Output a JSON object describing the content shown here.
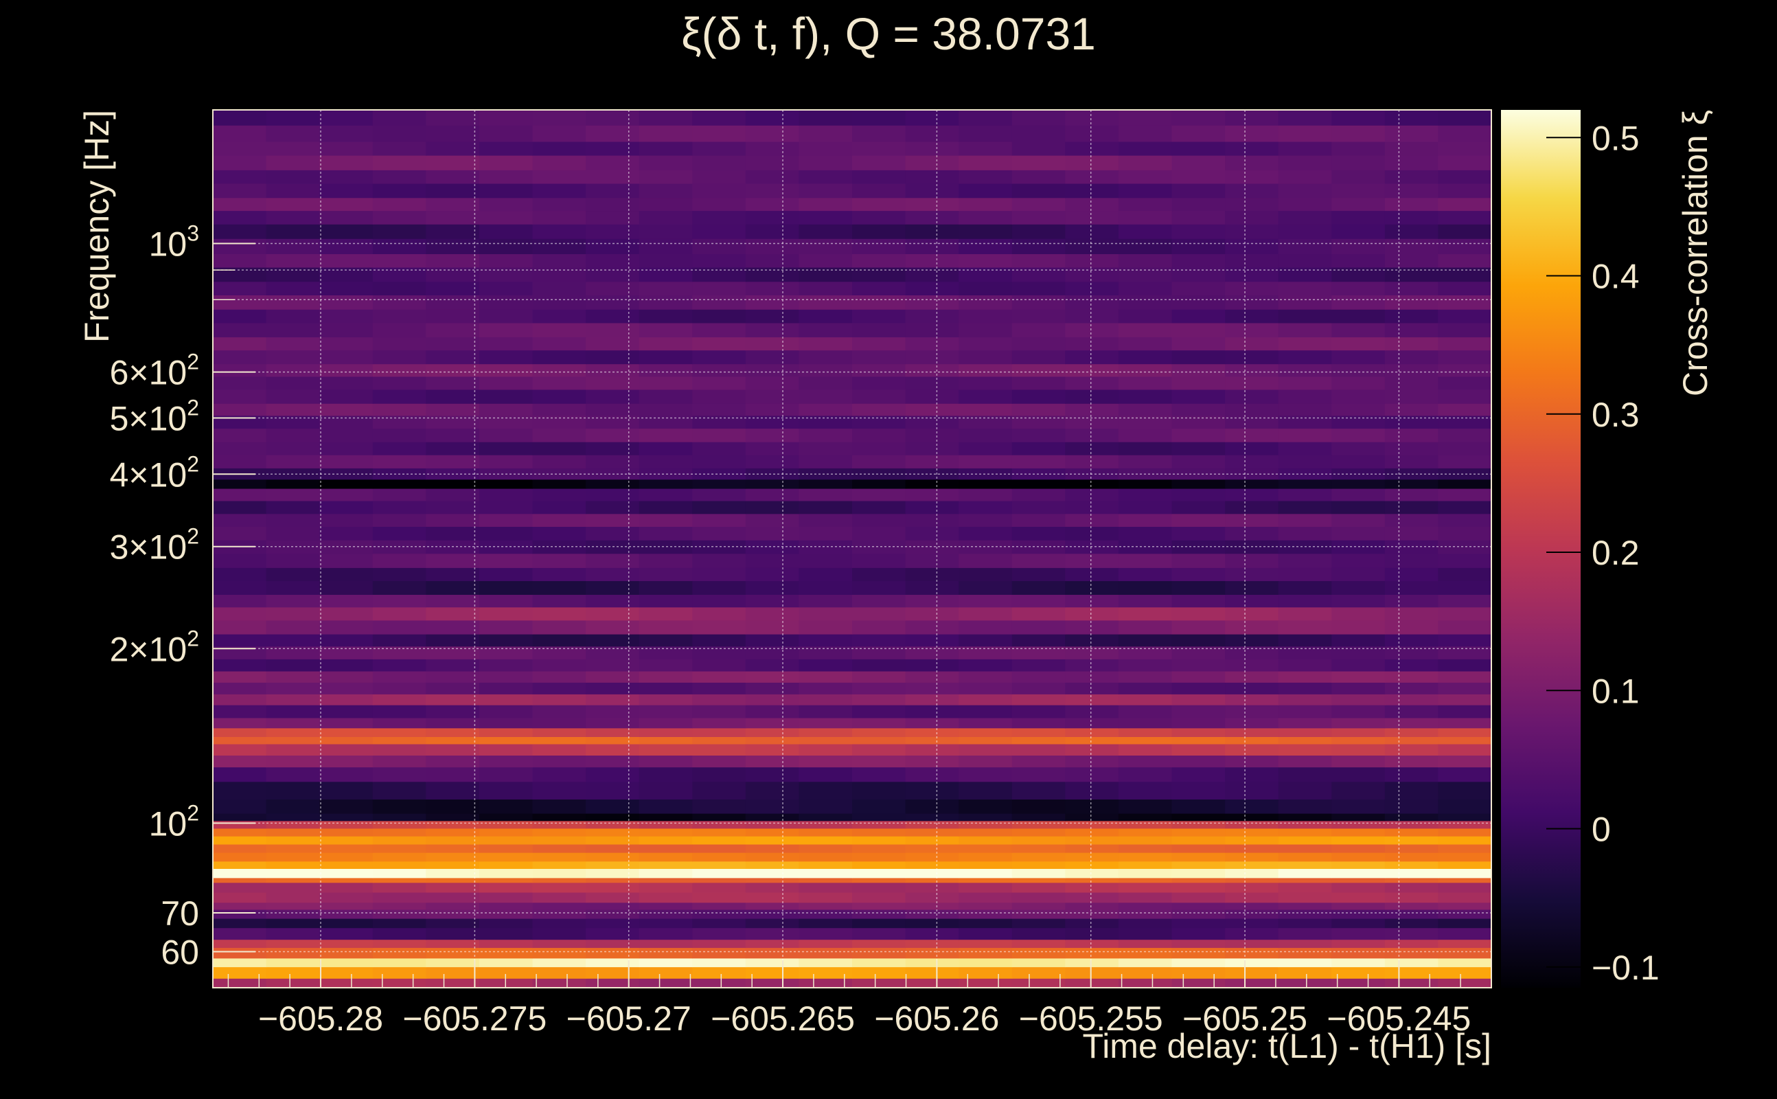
{
  "chart_data": {
    "type": "heatmap",
    "title": "ξ(δ t, f), Q = 38.0731",
    "xlabel": "Time delay: t(L1) - t(H1) [s]",
    "ylabel": "Frequency [Hz]",
    "colorbar_label": "Cross-correlation ξ",
    "xlim": [
      -605.2835,
      -605.242
    ],
    "ylim": [
      52,
      1700
    ],
    "y_scale": "log",
    "grid": true,
    "colormap": "inferno",
    "x_ticks": [
      -605.28,
      -605.275,
      -605.27,
      -605.265,
      -605.26,
      -605.255,
      -605.25,
      -605.245
    ],
    "x_tick_labels": [
      "−605.28",
      "−605.275",
      "−605.27",
      "−605.265",
      "−605.26",
      "−605.255",
      "−605.25",
      "−605.245"
    ],
    "y_ticks": [
      60,
      70,
      100,
      200,
      300,
      400,
      500,
      600,
      1000
    ],
    "y_tick_labels": [
      {
        "value": 60,
        "base": "60",
        "exp": ""
      },
      {
        "value": 70,
        "base": "70",
        "exp": ""
      },
      {
        "value": 100,
        "base": "10",
        "exp": "2"
      },
      {
        "value": 200,
        "base": "2×10",
        "exp": "2"
      },
      {
        "value": 300,
        "base": "3×10",
        "exp": "2"
      },
      {
        "value": 400,
        "base": "4×10",
        "exp": "2"
      },
      {
        "value": 500,
        "base": "5×10",
        "exp": "2"
      },
      {
        "value": 600,
        "base": "6×10",
        "exp": "2"
      },
      {
        "value": 1000,
        "base": "10",
        "exp": "3"
      }
    ],
    "y_grid_extra": [
      800,
      900
    ],
    "colorbar_range": [
      -0.115,
      0.52
    ],
    "colorbar_ticks": [
      -0.1,
      0,
      0.1,
      0.2,
      0.3,
      0.4,
      0.5
    ],
    "colorbar_tick_labels": [
      "−0.1",
      "0",
      "0.1",
      "0.2",
      "0.3",
      "0.4",
      "0.5"
    ],
    "freq_bands": [
      {
        "f": [
          52,
          54
        ],
        "v": 0.16
      },
      {
        "f": [
          54,
          56.5
        ],
        "v": 0.38
      },
      {
        "f": [
          56.5,
          58.5
        ],
        "v": 0.5
      },
      {
        "f": [
          58.5,
          61
        ],
        "v": 0.3
      },
      {
        "f": [
          61,
          63
        ],
        "v": 0.2
      },
      {
        "f": [
          63,
          66
        ],
        "v": 0.02
      },
      {
        "f": [
          66,
          68.5
        ],
        "v": -0.02
      },
      {
        "f": [
          68.5,
          71
        ],
        "v": 0.06
      },
      {
        "f": [
          71,
          73
        ],
        "v": 0.1
      },
      {
        "f": [
          73,
          76
        ],
        "v": 0.16
      },
      {
        "f": [
          76,
          79
        ],
        "v": 0.18
      },
      {
        "f": [
          79,
          80.5
        ],
        "v": 0.3
      },
      {
        "f": [
          80.5,
          83.5
        ],
        "v": 0.52
      },
      {
        "f": [
          83.5,
          86
        ],
        "v": 0.4
      },
      {
        "f": [
          86,
          89
        ],
        "v": 0.34
      },
      {
        "f": [
          89,
          92
        ],
        "v": 0.3
      },
      {
        "f": [
          92,
          95
        ],
        "v": 0.38
      },
      {
        "f": [
          95,
          98
        ],
        "v": 0.33
      },
      {
        "f": [
          98,
          101
        ],
        "v": 0.22
      },
      {
        "f": [
          101,
          104
        ],
        "v": -0.08
      },
      {
        "f": [
          104,
          110
        ],
        "v": -0.06
      },
      {
        "f": [
          110,
          118
        ],
        "v": -0.02
      },
      {
        "f": [
          118,
          125
        ],
        "v": 0.02
      },
      {
        "f": [
          125,
          131
        ],
        "v": 0.1
      },
      {
        "f": [
          131,
          137
        ],
        "v": 0.2
      },
      {
        "f": [
          137,
          141
        ],
        "v": 0.3
      },
      {
        "f": [
          141,
          146
        ],
        "v": 0.24
      },
      {
        "f": [
          146,
          152
        ],
        "v": 0.08
      },
      {
        "f": [
          152,
          160
        ],
        "v": 0.04
      },
      {
        "f": [
          160,
          167
        ],
        "v": 0.14
      },
      {
        "f": [
          167,
          175
        ],
        "v": 0.05
      },
      {
        "f": [
          175,
          183
        ],
        "v": 0.1
      },
      {
        "f": [
          183,
          192
        ],
        "v": 0.03
      },
      {
        "f": [
          192,
          202
        ],
        "v": 0.06
      },
      {
        "f": [
          202,
          212
        ],
        "v": -0.01
      },
      {
        "f": [
          212,
          224
        ],
        "v": 0.1
      },
      {
        "f": [
          224,
          236
        ],
        "v": 0.14
      },
      {
        "f": [
          236,
          248
        ],
        "v": 0.05
      },
      {
        "f": [
          248,
          262
        ],
        "v": -0.02
      },
      {
        "f": [
          262,
          276
        ],
        "v": 0.01
      },
      {
        "f": [
          276,
          292
        ],
        "v": 0.05
      },
      {
        "f": [
          292,
          308
        ],
        "v": 0.02
      },
      {
        "f": [
          308,
          325
        ],
        "v": 0.03
      },
      {
        "f": [
          325,
          342
        ],
        "v": 0.06
      },
      {
        "f": [
          342,
          360
        ],
        "v": 0.0
      },
      {
        "f": [
          360,
          378
        ],
        "v": 0.04
      },
      {
        "f": [
          378,
          392
        ],
        "v": -0.1
      },
      {
        "f": [
          392,
          410
        ],
        "v": 0.01
      },
      {
        "f": [
          410,
          432
        ],
        "v": 0.05
      },
      {
        "f": [
          432,
          455
        ],
        "v": 0.02
      },
      {
        "f": [
          455,
          480
        ],
        "v": 0.06
      },
      {
        "f": [
          480,
          505
        ],
        "v": 0.04
      },
      {
        "f": [
          505,
          530
        ],
        "v": 0.07
      },
      {
        "f": [
          530,
          560
        ],
        "v": 0.03
      },
      {
        "f": [
          560,
          590
        ],
        "v": 0.06
      },
      {
        "f": [
          590,
          620
        ],
        "v": 0.08
      },
      {
        "f": [
          620,
          655
        ],
        "v": 0.03
      },
      {
        "f": [
          655,
          690
        ],
        "v": 0.08
      },
      {
        "f": [
          690,
          730
        ],
        "v": 0.06
      },
      {
        "f": [
          730,
          770
        ],
        "v": 0.02
      },
      {
        "f": [
          770,
          815
        ],
        "v": 0.06
      },
      {
        "f": [
          815,
          860
        ],
        "v": 0.03
      },
      {
        "f": [
          860,
          910
        ],
        "v": 0.01
      },
      {
        "f": [
          910,
          960
        ],
        "v": 0.05
      },
      {
        "f": [
          960,
          1020
        ],
        "v": 0.02
      },
      {
        "f": [
          1020,
          1080
        ],
        "v": 0.0
      },
      {
        "f": [
          1080,
          1140
        ],
        "v": 0.04
      },
      {
        "f": [
          1140,
          1200
        ],
        "v": 0.07
      },
      {
        "f": [
          1200,
          1270
        ],
        "v": 0.03
      },
      {
        "f": [
          1270,
          1340
        ],
        "v": 0.05
      },
      {
        "f": [
          1340,
          1420
        ],
        "v": 0.08
      },
      {
        "f": [
          1420,
          1500
        ],
        "v": 0.04
      },
      {
        "f": [
          1500,
          1600
        ],
        "v": 0.06
      },
      {
        "f": [
          1600,
          1700
        ],
        "v": 0.03
      }
    ]
  }
}
